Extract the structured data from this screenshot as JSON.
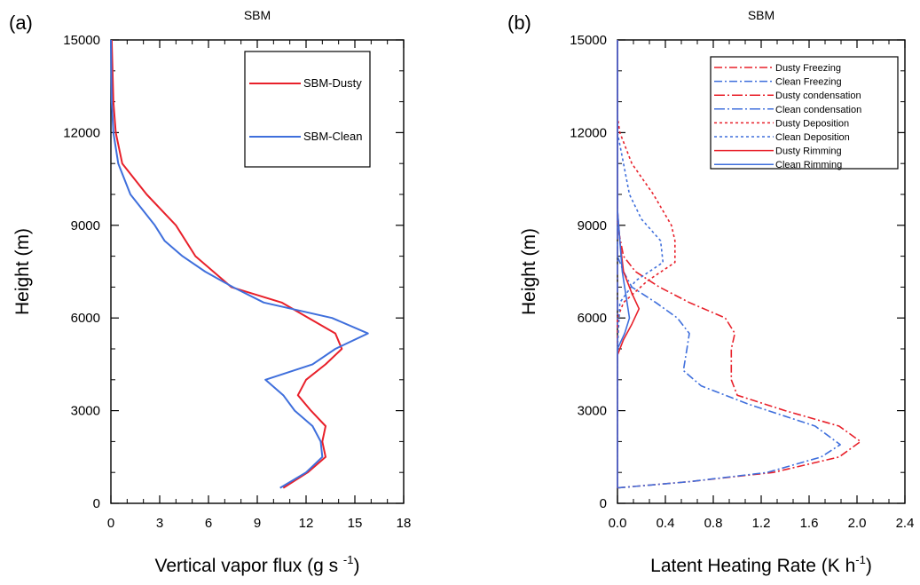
{
  "chart_data": [
    {
      "type": "line",
      "panel_label": "(a)",
      "title": "SBM",
      "xlabel": "Vertical vapor flux",
      "xlabel_unit_base": "g s",
      "xlabel_unit_exp": "-1",
      "ylabel": "Height (m)",
      "xlim": [
        0,
        18
      ],
      "ylim": [
        0,
        15000
      ],
      "xticks": [
        0,
        3,
        6,
        9,
        12,
        15,
        18
      ],
      "xtick_labels": [
        "0",
        "3",
        "6",
        "9",
        "12",
        "15",
        "18"
      ],
      "yticks": [
        0,
        3000,
        6000,
        9000,
        12000,
        15000
      ],
      "ytick_labels": [
        "0",
        "3000",
        "6000",
        "9000",
        "12000",
        "15000"
      ],
      "grid": false,
      "legend_position": "top-right",
      "series": [
        {
          "name": "SBM-Dusty",
          "color": "#e8202a",
          "dash": "solid",
          "points": [
            [
              10.6,
              500
            ],
            [
              12.1,
              1000
            ],
            [
              13.2,
              1500
            ],
            [
              13.0,
              2000
            ],
            [
              13.2,
              2500
            ],
            [
              12.3,
              3000
            ],
            [
              11.5,
              3500
            ],
            [
              12.0,
              4000
            ],
            [
              13.2,
              4500
            ],
            [
              14.2,
              5000
            ],
            [
              13.8,
              5500
            ],
            [
              10.5,
              6500
            ],
            [
              7.4,
              7000
            ],
            [
              5.2,
              8000
            ],
            [
              4.0,
              9000
            ],
            [
              2.2,
              10000
            ],
            [
              0.7,
              11000
            ],
            [
              0.3,
              12000
            ],
            [
              0.15,
              13000
            ],
            [
              0.05,
              15000
            ]
          ]
        },
        {
          "name": "SBM-Clean",
          "color": "#3f6fdc",
          "dash": "solid",
          "points": [
            [
              10.4,
              500
            ],
            [
              12.0,
              1000
            ],
            [
              13.0,
              1500
            ],
            [
              12.9,
              2000
            ],
            [
              12.4,
              2500
            ],
            [
              11.3,
              3000
            ],
            [
              10.6,
              3500
            ],
            [
              9.5,
              4000
            ],
            [
              12.4,
              4500
            ],
            [
              13.8,
              5000
            ],
            [
              15.8,
              5500
            ],
            [
              13.6,
              6000
            ],
            [
              9.4,
              6500
            ],
            [
              7.5,
              7000
            ],
            [
              5.8,
              7500
            ],
            [
              4.4,
              8000
            ],
            [
              3.3,
              8500
            ],
            [
              2.7,
              9000
            ],
            [
              1.2,
              10000
            ],
            [
              0.45,
              11000
            ],
            [
              0.15,
              12000
            ],
            [
              0.05,
              13000
            ],
            [
              0.0,
              15000
            ]
          ]
        }
      ]
    },
    {
      "type": "line",
      "panel_label": "(b)",
      "title": "SBM",
      "xlabel": "Latent Heating Rate (K h",
      "xlabel_unit_exp": "-1",
      "xlabel_suffix": ")",
      "ylabel": "Height (m)",
      "xlim": [
        0,
        2.4
      ],
      "ylim": [
        0,
        15000
      ],
      "xticks": [
        0,
        0.4,
        0.8,
        1.2,
        1.6,
        2.0,
        2.4
      ],
      "xtick_labels": [
        "0.0",
        "0.4",
        "0.8",
        "1.2",
        "1.6",
        "2.0",
        "2.4"
      ],
      "yticks": [
        0,
        3000,
        6000,
        9000,
        12000,
        15000
      ],
      "ytick_labels": [
        "0",
        "3000",
        "6000",
        "9000",
        "12000",
        "15000"
      ],
      "grid": false,
      "legend_position": "top-right",
      "series": [
        {
          "name": "Dusty Freezing",
          "color": "#e8202a",
          "dash": "dashdot",
          "points": [
            [
              0.0,
              500
            ],
            [
              0.6,
              700
            ],
            [
              1.3,
              1000
            ],
            [
              1.85,
              1500
            ],
            [
              2.03,
              2000
            ],
            [
              1.85,
              2500
            ],
            [
              1.4,
              3000
            ],
            [
              1.0,
              3500
            ],
            [
              0.95,
              4000
            ],
            [
              0.95,
              4500
            ],
            [
              0.95,
              5000
            ],
            [
              0.98,
              5500
            ],
            [
              0.9,
              6000
            ],
            [
              0.6,
              6500
            ],
            [
              0.35,
              7000
            ],
            [
              0.15,
              7500
            ],
            [
              0.05,
              8000
            ],
            [
              0.0,
              9000
            ],
            [
              0.0,
              15000
            ]
          ]
        },
        {
          "name": "Clean Freezing",
          "color": "#3f6fdc",
          "dash": "dashdot",
          "points": [
            [
              0.0,
              500
            ],
            [
              0.6,
              700
            ],
            [
              1.25,
              1000
            ],
            [
              1.7,
              1500
            ],
            [
              1.86,
              1900
            ],
            [
              1.65,
              2500
            ],
            [
              1.1,
              3200
            ],
            [
              0.7,
              3800
            ],
            [
              0.55,
              4300
            ],
            [
              0.58,
              5000
            ],
            [
              0.6,
              5500
            ],
            [
              0.5,
              6000
            ],
            [
              0.32,
              6500
            ],
            [
              0.12,
              7000
            ],
            [
              0.05,
              7500
            ],
            [
              0.0,
              8000
            ],
            [
              0.0,
              15000
            ]
          ]
        },
        {
          "name": "Dusty condensation",
          "color": "#e8202a",
          "dash": "longdash",
          "points": [
            [
              0.0,
              500
            ],
            [
              0.0,
              15000
            ]
          ]
        },
        {
          "name": "Clean condensation",
          "color": "#3f6fdc",
          "dash": "longdash",
          "points": [
            [
              0.0,
              500
            ],
            [
              0.0,
              15000
            ]
          ]
        },
        {
          "name": "Dusty Deposition",
          "color": "#e8202a",
          "dash": "dot",
          "points": [
            [
              0.0,
              5000
            ],
            [
              0.0,
              6000
            ],
            [
              0.05,
              6500
            ],
            [
              0.25,
              7200
            ],
            [
              0.48,
              7800
            ],
            [
              0.48,
              8500
            ],
            [
              0.45,
              9000
            ],
            [
              0.3,
              10000
            ],
            [
              0.12,
              11000
            ],
            [
              0.02,
              12000
            ],
            [
              0.0,
              12500
            ],
            [
              0.0,
              15000
            ]
          ]
        },
        {
          "name": "Clean Deposition",
          "color": "#3f6fdc",
          "dash": "dot",
          "points": [
            [
              0.0,
              5000
            ],
            [
              0.02,
              6500
            ],
            [
              0.15,
              7200
            ],
            [
              0.38,
              7800
            ],
            [
              0.36,
              8500
            ],
            [
              0.2,
              9200
            ],
            [
              0.1,
              10000
            ],
            [
              0.05,
              11000
            ],
            [
              0.0,
              12000
            ],
            [
              0.0,
              15000
            ]
          ]
        },
        {
          "name": "Dusty Rimming",
          "color": "#e8202a",
          "dash": "solid",
          "points": [
            [
              0.0,
              500
            ],
            [
              0.0,
              4800
            ],
            [
              0.05,
              5300
            ],
            [
              0.12,
              5800
            ],
            [
              0.18,
              6300
            ],
            [
              0.12,
              6800
            ],
            [
              0.05,
              7500
            ],
            [
              0.02,
              8500
            ],
            [
              0.0,
              9500
            ],
            [
              0.0,
              15000
            ]
          ]
        },
        {
          "name": "Clean Rimming",
          "color": "#3f6fdc",
          "dash": "solid",
          "points": [
            [
              0.0,
              500
            ],
            [
              0.0,
              5000
            ],
            [
              0.06,
              5500
            ],
            [
              0.1,
              6000
            ],
            [
              0.08,
              6500
            ],
            [
              0.04,
              7500
            ],
            [
              0.02,
              8500
            ],
            [
              0.0,
              9500
            ],
            [
              0.0,
              15000
            ]
          ]
        }
      ]
    }
  ]
}
